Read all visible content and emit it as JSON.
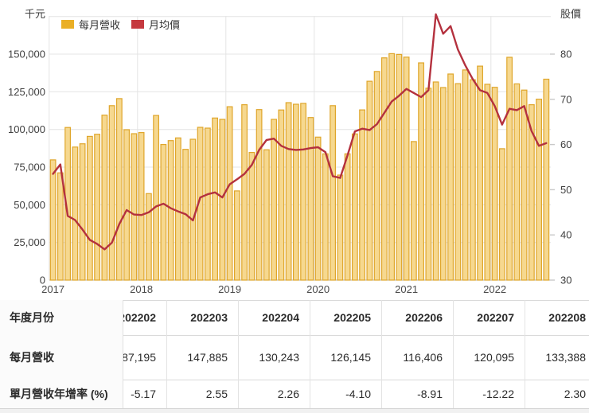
{
  "chart": {
    "unit_left": "千元",
    "unit_right": "股價",
    "legend": [
      {
        "label": "每月營收",
        "color": "#EAAF25"
      },
      {
        "label": "月均價",
        "color": "#C5393F"
      }
    ],
    "bar_fill": "#F6D88F",
    "bar_stroke": "#DFA62B",
    "line_color": "#B4313E",
    "y_left_tick_labels": [
      "150,000",
      "125,000",
      "100,000",
      "75,000",
      "50,000",
      "25,000",
      "0"
    ],
    "y_right_tick_labels": [
      "80",
      "70",
      "60",
      "50",
      "40",
      "30"
    ],
    "x_tick_labels": [
      "2017",
      "2018",
      "2019",
      "2020",
      "2021",
      "2022"
    ]
  },
  "chart_data": {
    "type": "combo",
    "title": "",
    "x": [
      "2017-01",
      "2017-02",
      "2017-03",
      "2017-04",
      "2017-05",
      "2017-06",
      "2017-07",
      "2017-08",
      "2017-09",
      "2017-10",
      "2017-11",
      "2017-12",
      "2018-01",
      "2018-02",
      "2018-03",
      "2018-04",
      "2018-05",
      "2018-06",
      "2018-07",
      "2018-08",
      "2018-09",
      "2018-10",
      "2018-11",
      "2018-12",
      "2019-01",
      "2019-02",
      "2019-03",
      "2019-04",
      "2019-05",
      "2019-06",
      "2019-07",
      "2019-08",
      "2019-09",
      "2019-10",
      "2019-11",
      "2019-12",
      "2020-01",
      "2020-02",
      "2020-03",
      "2020-04",
      "2020-05",
      "2020-06",
      "2020-07",
      "2020-08",
      "2020-09",
      "2020-10",
      "2020-11",
      "2020-12",
      "2021-01",
      "2021-02",
      "2021-03",
      "2021-04",
      "2021-05",
      "2021-06",
      "2021-07",
      "2021-08",
      "2021-09",
      "2021-10",
      "2021-11",
      "2021-12",
      "2022-01",
      "2022-02",
      "2022-03",
      "2022-04",
      "2022-05",
      "2022-06",
      "2022-07",
      "2022-08"
    ],
    "series": [
      {
        "name": "每月營收",
        "type": "bar",
        "axis": "left",
        "unit": "千元",
        "values": [
          79800,
          71200,
          101300,
          88300,
          90500,
          95400,
          96800,
          109500,
          115800,
          120500,
          99800,
          97200,
          97900,
          57400,
          109300,
          90000,
          92600,
          94400,
          86800,
          93500,
          101400,
          100900,
          107600,
          106700,
          115100,
          59200,
          116400,
          84700,
          113200,
          86500,
          106700,
          112900,
          117800,
          116700,
          117300,
          107900,
          94900,
          83800,
          115800,
          69700,
          83800,
          97000,
          113000,
          132000,
          138500,
          147500,
          150300,
          149800,
          148000,
          91950,
          144200,
          127400,
          131500,
          127800,
          136800,
          130400,
          139500,
          133000,
          142000,
          130000,
          128000,
          87195,
          147885,
          130243,
          126145,
          116406,
          120095,
          133388
        ]
      },
      {
        "name": "月均價",
        "type": "line",
        "axis": "right",
        "unit": "股價",
        "values": [
          53.5,
          55.6,
          44.2,
          43.3,
          41.2,
          38.9,
          38.0,
          36.8,
          38.3,
          42.4,
          45.5,
          44.5,
          44.4,
          45.0,
          46.3,
          46.9,
          45.9,
          45.2,
          44.6,
          43.2,
          48.3,
          49.0,
          49.4,
          48.3,
          51.2,
          52.3,
          53.5,
          55.5,
          58.8,
          61.0,
          61.3,
          59.7,
          59.0,
          58.8,
          58.9,
          59.2,
          59.4,
          58.3,
          53.0,
          52.6,
          57.6,
          62.9,
          63.5,
          63.2,
          64.5,
          67.0,
          69.5,
          70.8,
          72.3,
          71.4,
          70.5,
          72.0,
          88.8,
          84.5,
          86.2,
          81.0,
          77.5,
          74.5,
          72.0,
          71.4,
          68.5,
          64.4,
          67.9,
          67.6,
          68.5,
          63.0,
          59.7,
          60.3
        ]
      }
    ],
    "left_axis": {
      "title": "千元",
      "min": 0,
      "max": 175000,
      "tick_step": 25000,
      "labeled_max": 150000
    },
    "right_axis": {
      "title": "股價",
      "min": 30,
      "max": 80,
      "tick_step": 10
    },
    "legend_position": "top-left",
    "grid": true
  },
  "table": {
    "corner_label": "年度月份",
    "columns": [
      "202202",
      "202203",
      "202204",
      "202205",
      "202206",
      "202207",
      "202208"
    ],
    "rows": [
      {
        "label": "每月營收",
        "values": [
          "87,195",
          "147,885",
          "130,243",
          "126,145",
          "116,406",
          "120,095",
          "133,388"
        ]
      },
      {
        "label": "單月營收年增率 (%)",
        "values": [
          "-5.17",
          "2.55",
          "2.26",
          "-4.10",
          "-8.91",
          "-12.22",
          "2.30"
        ]
      }
    ]
  }
}
